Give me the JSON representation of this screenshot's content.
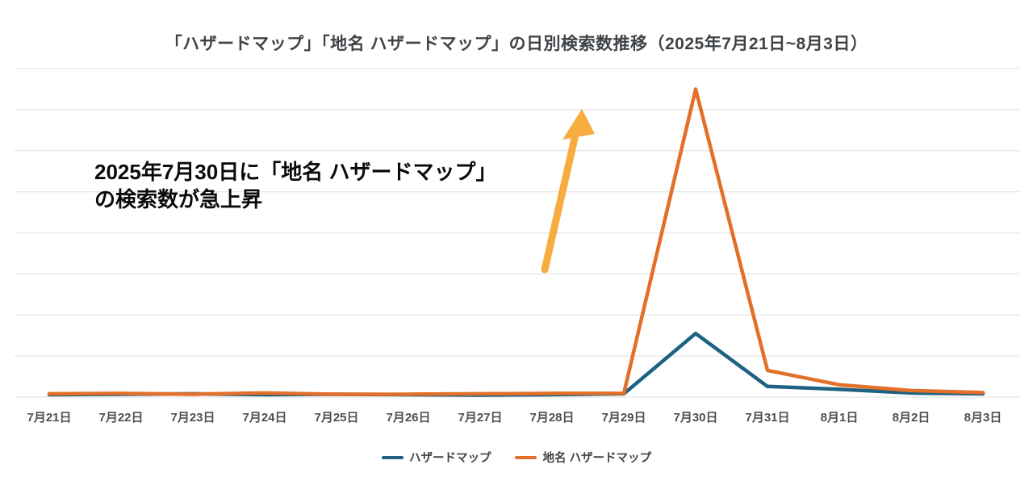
{
  "chart_data": {
    "type": "line",
    "title": "「ハザードマップ」「地名 ハザードマップ」の日別検索数推移（2025年7月21日~8月3日）",
    "categories": [
      "7月21日",
      "7月22日",
      "7月23日",
      "7月24日",
      "7月25日",
      "7月26日",
      "7月27日",
      "7月28日",
      "7月29日",
      "7月30日",
      "7月31日",
      "8月1日",
      "8月2日",
      "8月3日"
    ],
    "series": [
      {
        "name": "ハザードマップ",
        "color": "#1F6183",
        "values": [
          6,
          7,
          8,
          6,
          7,
          6,
          5,
          6,
          8,
          155,
          26,
          19,
          10,
          8
        ]
      },
      {
        "name": "地名 ハザードマップ",
        "color": "#E2702A",
        "values": [
          8,
          9,
          7,
          10,
          7,
          7,
          8,
          9,
          9,
          750,
          65,
          30,
          16,
          11
        ]
      }
    ],
    "xlabel": "",
    "ylabel": "",
    "ylim": [
      0,
      800
    ],
    "gridline_step": 100,
    "grid": true,
    "legend_position": "bottom"
  },
  "annotation": {
    "line1": "2025年7月30日に「地名 ハザードマップ」",
    "line2": "の検索数が急上昇",
    "arrow_color": "#F6AC3F"
  },
  "colors": {
    "background": "#FFFFFF",
    "gridline": "#E5E5E5",
    "title_text": "#3F4347",
    "axis_text": "#4C5055",
    "legend_text": "#3F4347",
    "annotation_text": "#0B0B0B"
  }
}
